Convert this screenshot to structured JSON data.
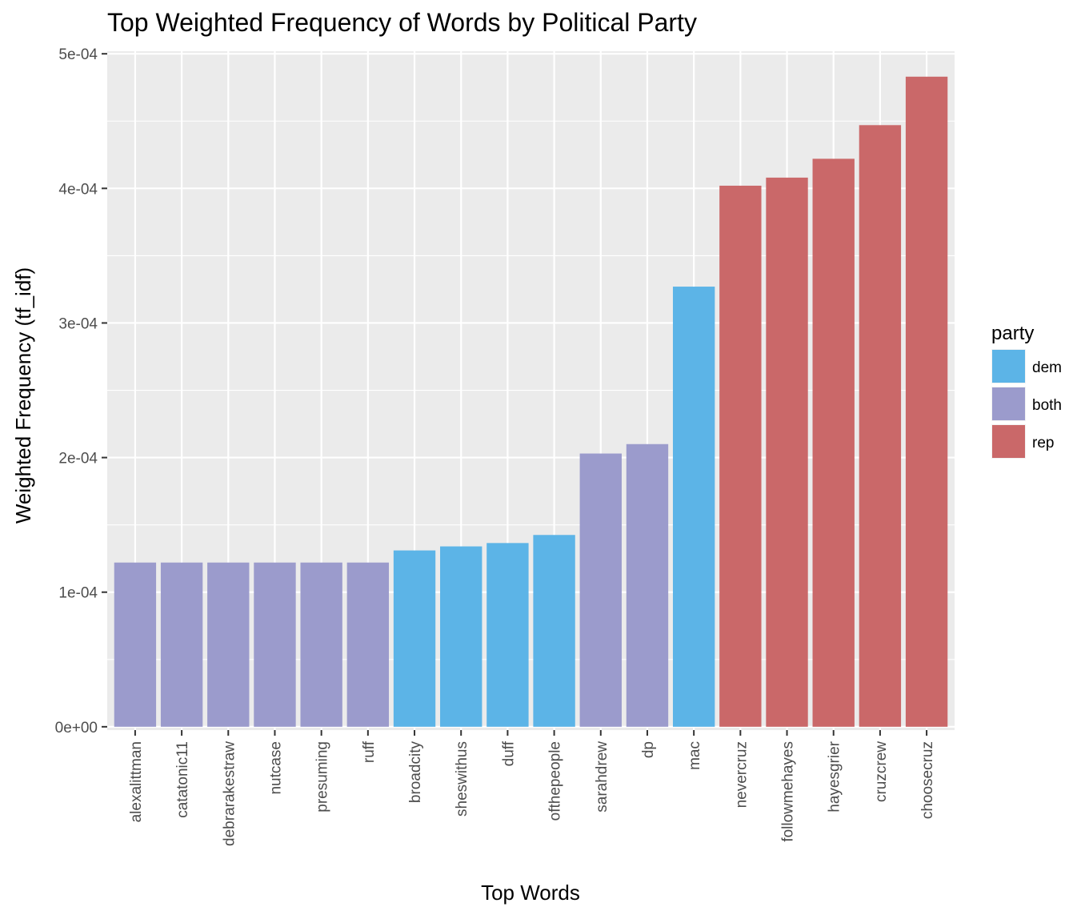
{
  "chart_data": {
    "type": "bar",
    "title": "Top Weighted Frequency of Words by Political Party",
    "xlabel": "Top Words",
    "ylabel": "Weighted Frequency (tf_idf)",
    "ylim": [
      -2.47e-06,
      0.0005019
    ],
    "y_ticks": [
      0,
      0.0001,
      0.0002,
      0.0003,
      0.0004,
      0.0005
    ],
    "y_tick_labels": [
      "0e+00",
      "1e-04",
      "2e-04",
      "3e-04",
      "4e-04",
      "5e-04"
    ],
    "grid": true,
    "categories": [
      "alexalittman",
      "catatonic11",
      "debrarakestraw",
      "nutcase",
      "presuming",
      "ruff",
      "broadcity",
      "sheswithus",
      "duff",
      "ofthepeople",
      "sarahdrew",
      "dp",
      "mac",
      "nevercruz",
      "followmehayes",
      "hayesgrier",
      "cruzcrew",
      "choosecruz"
    ],
    "values": [
      0.000122,
      0.000122,
      0.000122,
      0.000122,
      0.000122,
      0.000122,
      0.000131,
      0.000134,
      0.0001365,
      0.0001425,
      0.000203,
      0.00021,
      0.000327,
      0.000402,
      0.000408,
      0.000422,
      0.000447,
      0.000483
    ],
    "party": [
      "both",
      "both",
      "both",
      "both",
      "both",
      "both",
      "dem",
      "dem",
      "dem",
      "dem",
      "both",
      "both",
      "dem",
      "rep",
      "rep",
      "rep",
      "rep",
      "rep"
    ],
    "legend": {
      "title": "party",
      "position": "right",
      "entries": [
        {
          "key": "dem",
          "label": " dem",
          "color": "#5cb4e7"
        },
        {
          "key": "both",
          "label": "both",
          "color": "#9b9bcc"
        },
        {
          "key": "rep",
          "label": "rep",
          "color": "#ca6869"
        }
      ]
    },
    "panel_background": "#ebebeb",
    "grid_color": "#ffffff"
  }
}
